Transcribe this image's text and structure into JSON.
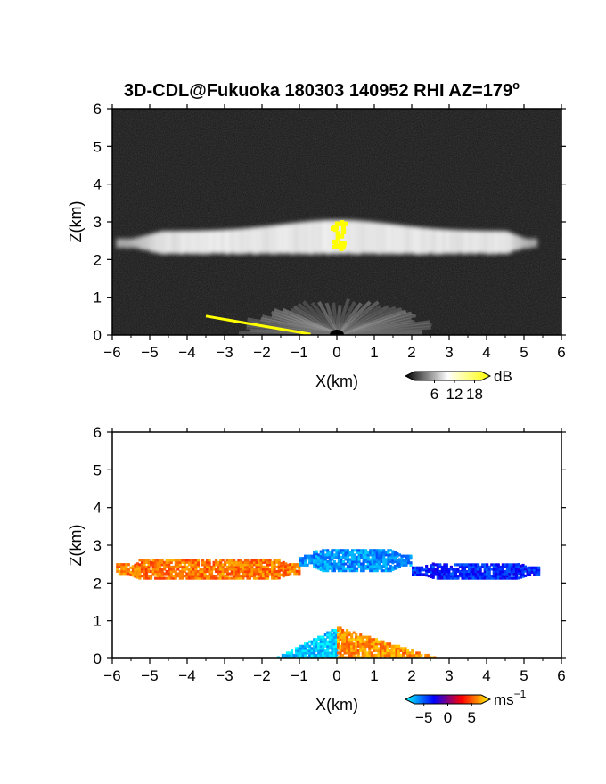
{
  "figure": {
    "title": "3D-CDL@Fukuoka 180303 140952 RHI AZ=179",
    "title_sup": "o"
  },
  "chart_data": [
    {
      "type": "heatmap",
      "panel": "top",
      "variable": "intensity",
      "xlabel": "X(km)",
      "ylabel": "Z(km)",
      "xlim": [
        -6,
        6
      ],
      "ylim": [
        0,
        6
      ],
      "x_ticks": [
        -6,
        -5,
        -4,
        -3,
        -2,
        -1,
        0,
        1,
        2,
        3,
        4,
        5,
        6
      ],
      "y_ticks": [
        0,
        1,
        2,
        3,
        4,
        5,
        6
      ],
      "background": "#151515",
      "colorbar": {
        "unit": "dB",
        "ticks": [
          "6",
          "12",
          "18"
        ],
        "range": [
          0,
          20
        ],
        "colors": [
          "#000000",
          "#ffffff",
          "#ffff00"
        ]
      },
      "features": [
        {
          "name": "cloud layer",
          "x_range": [
            -5.9,
            5.3
          ],
          "z_center": 2.45,
          "thickness": 0.55,
          "peak_z": 3.05,
          "peak_x": 0.0,
          "color": "#e6e6e6"
        },
        {
          "name": "near-ground echo",
          "x_range": [
            -2.4,
            2.4
          ],
          "z_top": 0.75,
          "color": "#9a9a9a"
        },
        {
          "name": "yellow core",
          "x": 0.0,
          "z_range": [
            2.25,
            3.1
          ],
          "color": "#ffff00"
        },
        {
          "name": "yellow ground line",
          "from": [
            -3.5,
            0.5
          ],
          "to": [
            -0.7,
            0.02
          ],
          "color": "#ffff00"
        }
      ]
    },
    {
      "type": "heatmap",
      "panel": "bottom",
      "variable": "radial velocity",
      "xlabel": "X(km)",
      "ylabel": "Z(km)",
      "xlim": [
        -6,
        6
      ],
      "ylim": [
        0,
        6
      ],
      "x_ticks": [
        -6,
        -5,
        -4,
        -3,
        -2,
        -1,
        0,
        1,
        2,
        3,
        4,
        5,
        6
      ],
      "y_ticks": [
        0,
        1,
        2,
        3,
        4,
        5,
        6
      ],
      "background": "#ffffff",
      "colorbar": {
        "unit": "ms",
        "unit_sup": "-1",
        "ticks": [
          "-5",
          "0",
          "5"
        ],
        "range": [
          -7,
          7
        ],
        "colors": [
          "#00ffff",
          "#0000ff",
          "#ff0000",
          "#ffff00"
        ]
      },
      "features": [
        {
          "name": "cloud left",
          "x_range": [
            -5.9,
            -1.0
          ],
          "z_center": 2.35,
          "thickness": 0.5,
          "velocity": 4.5
        },
        {
          "name": "cloud middle",
          "x_range": [
            -1.0,
            2.0
          ],
          "z_center": 2.6,
          "thickness": 0.6,
          "velocity": -5.0
        },
        {
          "name": "cloud right",
          "x_range": [
            2.0,
            5.4
          ],
          "z_center": 2.3,
          "thickness": 0.4,
          "velocity": -3.0
        },
        {
          "name": "low echo left",
          "x_range": [
            -1.6,
            0.0
          ],
          "z_range": [
            0.0,
            0.8
          ],
          "velocity": -6.0
        },
        {
          "name": "low echo right",
          "x_range": [
            0.0,
            2.6
          ],
          "z_range": [
            0.0,
            0.8
          ],
          "velocity": 5.0
        }
      ]
    }
  ]
}
